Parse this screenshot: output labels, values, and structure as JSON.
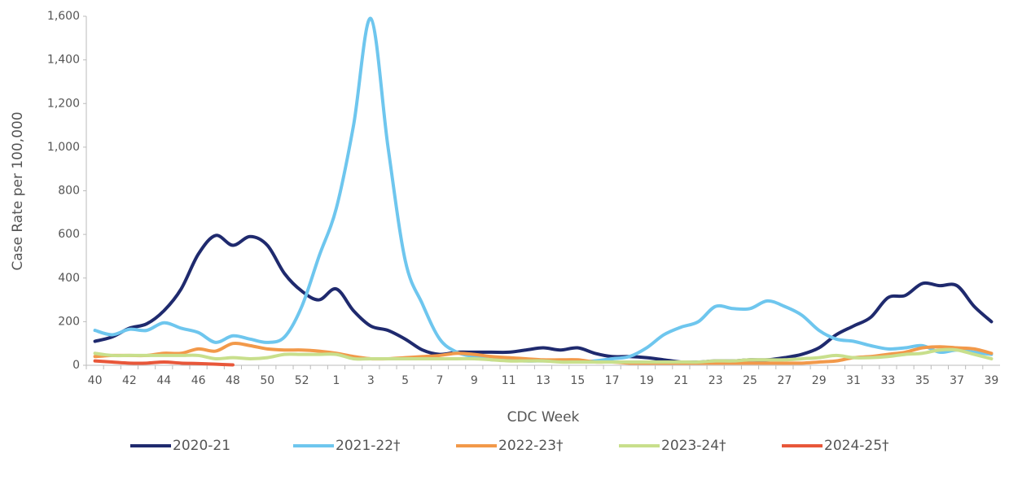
{
  "chart_data": {
    "type": "line",
    "y_label": "Case Rate per 100,000",
    "x_label": "CDC Week",
    "categories": [
      "40",
      null,
      "42",
      null,
      "44",
      null,
      "46",
      null,
      "48",
      null,
      "50",
      null,
      "52",
      null,
      "1",
      null,
      "3",
      null,
      "5",
      null,
      "7",
      null,
      "9",
      null,
      "11",
      null,
      "13",
      null,
      "15",
      null,
      "17",
      null,
      "19",
      null,
      "21",
      null,
      "23",
      null,
      "25",
      null,
      "27",
      null,
      "29",
      null,
      "31",
      null,
      "33",
      null,
      "35",
      null,
      "37",
      null,
      "39"
    ],
    "ylim": [
      0,
      1600
    ],
    "yticks": [
      0,
      200,
      400,
      600,
      800,
      {
        "value": 1000,
        "label": "1,000"
      },
      {
        "value": 1200,
        "label": "1,200"
      },
      {
        "value": 1400,
        "label": "1,400"
      },
      {
        "value": 1600,
        "label": "1,600"
      }
    ],
    "grid": false,
    "legend": "bottom",
    "series": [
      {
        "name": "2020-21",
        "color": "#1f2a6e",
        "values": [
          110,
          130,
          170,
          190,
          250,
          350,
          510,
          595,
          550,
          590,
          550,
          420,
          340,
          300,
          350,
          250,
          180,
          160,
          120,
          70,
          50,
          60,
          60,
          60,
          60,
          70,
          80,
          70,
          80,
          55,
          40,
          40,
          35,
          25,
          15,
          15,
          20,
          20,
          25,
          25,
          35,
          50,
          80,
          140,
          180,
          220,
          310,
          320,
          375,
          365,
          365,
          270,
          200
        ]
      },
      {
        "name": "2021-22†",
        "color": "#6ec6ee",
        "values": [
          160,
          140,
          165,
          160,
          195,
          170,
          150,
          105,
          135,
          120,
          105,
          130,
          270,
          500,
          720,
          1100,
          1590,
          1000,
          480,
          280,
          120,
          60,
          40,
          25,
          25,
          20,
          20,
          20,
          15,
          20,
          30,
          40,
          80,
          140,
          175,
          200,
          270,
          260,
          260,
          295,
          270,
          230,
          160,
          120,
          110,
          90,
          75,
          80,
          90,
          60,
          70,
          60,
          50
        ]
      },
      {
        "name": "2022-23†",
        "color": "#f2994a",
        "values": [
          40,
          45,
          45,
          45,
          55,
          55,
          75,
          65,
          100,
          90,
          75,
          70,
          70,
          65,
          55,
          40,
          30,
          30,
          35,
          40,
          45,
          55,
          50,
          40,
          35,
          30,
          25,
          25,
          25,
          15,
          15,
          10,
          10,
          10,
          10,
          10,
          10,
          10,
          10,
          10,
          10,
          10,
          15,
          20,
          35,
          40,
          50,
          60,
          80,
          85,
          80,
          75,
          55
        ]
      },
      {
        "name": "2023-24†",
        "color": "#c8df8c",
        "values": [
          55,
          45,
          45,
          45,
          45,
          45,
          45,
          30,
          35,
          30,
          35,
          50,
          50,
          50,
          50,
          30,
          30,
          30,
          30,
          30,
          30,
          30,
          30,
          25,
          20,
          20,
          20,
          15,
          15,
          15,
          15,
          15,
          15,
          15,
          15,
          15,
          20,
          20,
          25,
          25,
          25,
          30,
          35,
          45,
          35,
          35,
          40,
          50,
          55,
          70,
          70,
          50,
          30
        ]
      },
      {
        "name": "2024-25†",
        "color": "#e8573a",
        "values": [
          20,
          15,
          10,
          10,
          15,
          10,
          8,
          5,
          2,
          null,
          null,
          null,
          null,
          null,
          null,
          null,
          null,
          null,
          null,
          null,
          null,
          null,
          null,
          null,
          null,
          null,
          null,
          null,
          null,
          null,
          null,
          null,
          null,
          null,
          null,
          null,
          null,
          null,
          null,
          null,
          null,
          null,
          null,
          null,
          null,
          null,
          null,
          null,
          null,
          null,
          null,
          null,
          null
        ]
      }
    ]
  }
}
